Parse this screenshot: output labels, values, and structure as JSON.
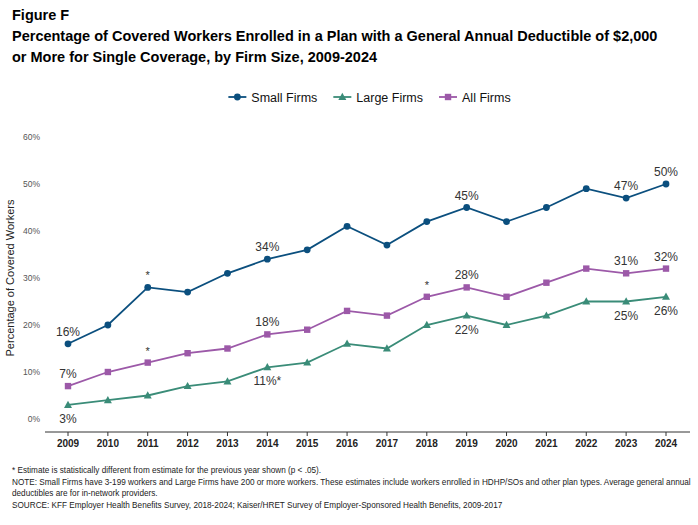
{
  "chart_data": {
    "type": "line",
    "figure_label": "Figure F",
    "title": "Percentage of Covered Workers Enrolled in a Plan with a General Annual Deductible of $2,000 or More for Single Coverage, by Firm Size, 2009-2024",
    "y_label": "Percentage of Covered Workers",
    "categories": [
      "2009",
      "2010",
      "2011",
      "2012",
      "2013",
      "2014",
      "2015",
      "2016",
      "2017",
      "2018",
      "2019",
      "2020",
      "2021",
      "2022",
      "2023",
      "2024"
    ],
    "series": [
      {
        "name": "Small Firms",
        "color": "#0b4f7e",
        "marker": "circle",
        "values": [
          16,
          20,
          28,
          27,
          31,
          34,
          36,
          41,
          37,
          42,
          45,
          42,
          45,
          49,
          47,
          50
        ],
        "value_labels": [
          "16%",
          null,
          null,
          null,
          null,
          "34%",
          null,
          null,
          null,
          null,
          "45%",
          null,
          null,
          null,
          "47%",
          "50%"
        ]
      },
      {
        "name": "Large Firms",
        "color": "#3a8c78",
        "marker": "triangle",
        "values": [
          3,
          4,
          5,
          7,
          8,
          11,
          12,
          16,
          15,
          20,
          22,
          20,
          22,
          25,
          25,
          26
        ],
        "value_labels": [
          "3%",
          null,
          null,
          null,
          null,
          "11%*",
          null,
          null,
          null,
          null,
          "22%",
          null,
          null,
          null,
          "25%",
          "26%"
        ]
      },
      {
        "name": "All Firms",
        "color": "#9c59a8",
        "marker": "square",
        "values": [
          7,
          10,
          12,
          14,
          15,
          18,
          19,
          23,
          22,
          26,
          28,
          26,
          29,
          32,
          31,
          32
        ],
        "value_labels": [
          "7%",
          null,
          null,
          null,
          null,
          "18%",
          null,
          null,
          null,
          null,
          "28%",
          null,
          null,
          null,
          "31%",
          "32%"
        ]
      }
    ],
    "annotations": [
      {
        "x": "2011",
        "series": "Small Firms",
        "text": "*"
      },
      {
        "x": "2011",
        "series": "All Firms",
        "text": "*"
      },
      {
        "x": "2018",
        "series": "All Firms",
        "text": "*"
      }
    ],
    "ylim": [
      0,
      60
    ],
    "yticks": [
      {
        "value": 0,
        "label": "0%"
      },
      {
        "value": 10,
        "label": "10%"
      },
      {
        "value": 20,
        "label": "20%"
      },
      {
        "value": 30,
        "label": "30%"
      },
      {
        "value": 40,
        "label": "40%"
      },
      {
        "value": 50,
        "label": "50%"
      },
      {
        "value": 60,
        "label": "60%"
      }
    ],
    "grid": false,
    "legend": "top",
    "data_labels": true,
    "notes": [
      "* Estimate is statistically different from estimate for the previous year shown (p < .05).",
      "NOTE: Small Firms have 3-199 workers and Large Firms have 200 or more workers. These estimates include workers enrolled in HDHP/SOs and other plan types. Average general annual deductibles are for in-network providers.",
      "SOURCE: KFF Employer Health Benefits Survey, 2018-2024; Kaiser/HRET Survey of Employer-Sponsored Health Benefits, 2009-2017"
    ]
  }
}
